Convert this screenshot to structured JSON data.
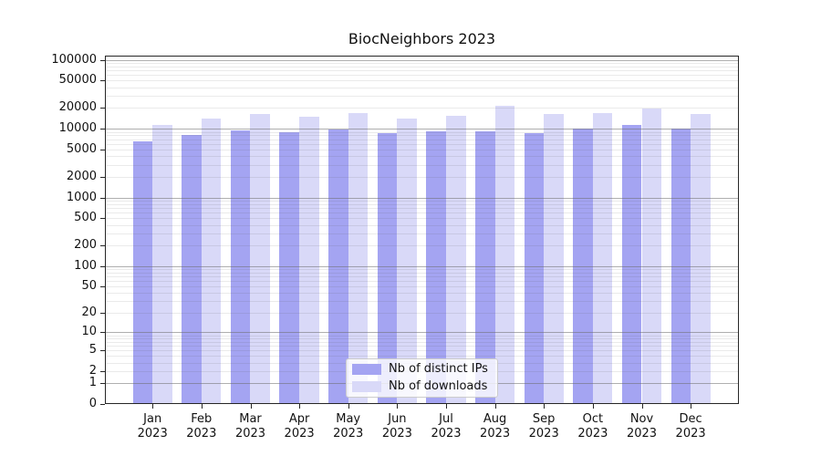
{
  "chart_data": {
    "type": "bar",
    "title": "BiocNeighbors 2023",
    "categories": [
      "Jan",
      "Feb",
      "Mar",
      "Apr",
      "May",
      "Jun",
      "Jul",
      "Aug",
      "Sep",
      "Oct",
      "Nov",
      "Dec"
    ],
    "x_tick_year": "2023",
    "series": [
      {
        "name": "Nb of distinct IPs",
        "color": "#a4a4f2",
        "values": [
          6500,
          8000,
          9500,
          8900,
          9800,
          8700,
          9100,
          9000,
          8700,
          9900,
          11400,
          9900
        ]
      },
      {
        "name": "Nb of downloads",
        "color": "#d9d9f8",
        "values": [
          11300,
          14000,
          16400,
          15100,
          16700,
          14000,
          15200,
          21300,
          16500,
          16800,
          19700,
          16500
        ]
      }
    ],
    "yscale": "log1p",
    "ylim": [
      0,
      124000
    ],
    "y_ticks": [
      0,
      1,
      2,
      5,
      10,
      20,
      50,
      100,
      200,
      500,
      1000,
      2000,
      5000,
      10000,
      20000,
      50000,
      100000
    ],
    "grid": {
      "major_at": "powers_of_10",
      "minor_at": "2_to_9_each_decade",
      "major_color": "#b0b0b0",
      "minor_color": "#e6e6e6"
    },
    "legend": {
      "position": "bottom-center"
    },
    "colors": {
      "background": "#ffffff",
      "axis": "#262626",
      "text": "#111111"
    }
  }
}
